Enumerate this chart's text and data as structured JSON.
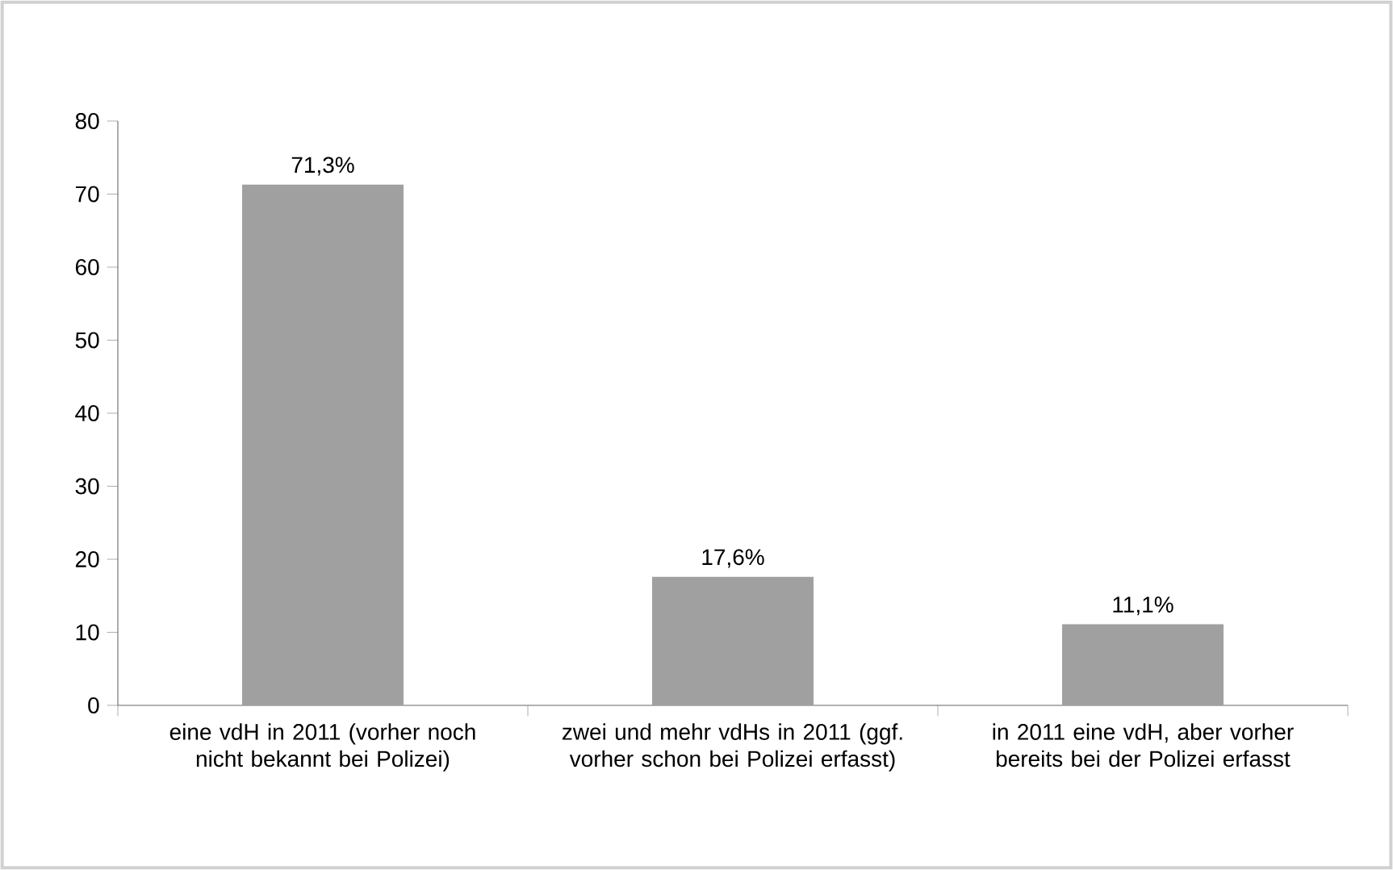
{
  "chart_data": {
    "type": "bar",
    "categories": [
      "eine vdH in 2011 (vorher noch nicht bekannt bei Polizei)",
      "zwei und mehr vdHs in 2011 (ggf. vorher schon bei Polizei erfasst)",
      "in 2011 eine vdH, aber vorher bereits bei der Polizei erfasst"
    ],
    "values": [
      71.3,
      17.6,
      11.1
    ],
    "value_labels": [
      "71,3%",
      "17,6%",
      "11,1%"
    ],
    "color": "#a0a0a0",
    "ylim": [
      0,
      80
    ],
    "yticks": [
      0,
      10,
      20,
      30,
      40,
      50,
      60,
      70,
      80
    ],
    "grid": false
  }
}
